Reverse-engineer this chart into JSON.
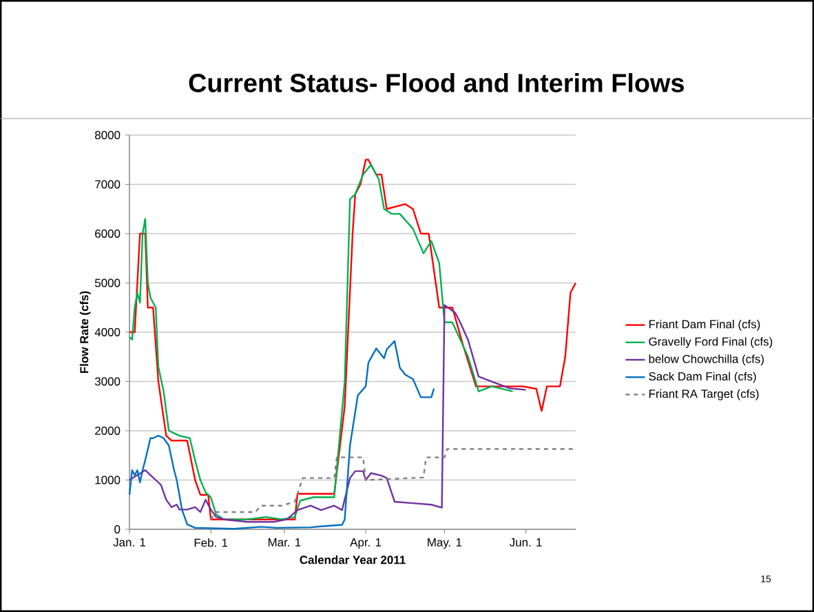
{
  "chart_data": {
    "type": "line",
    "title": "Current Status- Flood and Interim Flows",
    "xlabel": "Calendar Year 2011",
    "ylabel": "Flow Rate (cfs)",
    "xlim": [
      "2011-01-01",
      "2011-06-20"
    ],
    "xticks": [
      {
        "value": "2011-01-01",
        "label": "Jan. 1"
      },
      {
        "value": "2011-02-01",
        "label": "Feb. 1"
      },
      {
        "value": "2011-03-01",
        "label": "Mar. 1"
      },
      {
        "value": "2011-04-01",
        "label": "Apr. 1"
      },
      {
        "value": "2011-05-01",
        "label": "May. 1"
      },
      {
        "value": "2011-06-01",
        "label": "Jun. 1"
      }
    ],
    "ylim": [
      0,
      8000
    ],
    "yticks": [
      0,
      1000,
      2000,
      3000,
      4000,
      5000,
      6000,
      7000,
      8000
    ],
    "grid": "y",
    "legend": "right",
    "marker": "none",
    "annotations": [
      "15"
    ],
    "series": [
      {
        "name": "Friant Dam Final (cfs)",
        "color": "#ff0000",
        "x": [
          "2011-01-01",
          "2011-01-03",
          "2011-01-05",
          "2011-01-07",
          "2011-01-08",
          "2011-01-10",
          "2011-01-12",
          "2011-01-15",
          "2011-01-17",
          "2011-01-23",
          "2011-01-26",
          "2011-01-28",
          "2011-01-31",
          "2011-02-01",
          "2011-03-02",
          "2011-03-05",
          "2011-03-06",
          "2011-03-20",
          "2011-03-24",
          "2011-03-27",
          "2011-03-28",
          "2011-03-30",
          "2011-04-01",
          "2011-04-02",
          "2011-04-05",
          "2011-04-07",
          "2011-04-09",
          "2011-04-16",
          "2011-04-19",
          "2011-04-22",
          "2011-04-25",
          "2011-04-29",
          "2011-05-04",
          "2011-05-08",
          "2011-05-13",
          "2011-05-27",
          "2011-05-31",
          "2011-06-05",
          "2011-06-07",
          "2011-06-09",
          "2011-06-14",
          "2011-06-16",
          "2011-06-18",
          "2011-06-20"
        ],
        "values": [
          4000,
          4000,
          6000,
          6000,
          4500,
          4500,
          3000,
          1900,
          1800,
          1800,
          1000,
          700,
          700,
          200,
          200,
          200,
          720,
          720,
          2500,
          6000,
          6800,
          7000,
          7500,
          7500,
          7200,
          7200,
          6500,
          6600,
          6500,
          6000,
          6000,
          4500,
          4500,
          3750,
          2900,
          2900,
          2900,
          2850,
          2400,
          2900,
          2900,
          3500,
          4800,
          5000
        ]
      },
      {
        "name": "Gravelly Ford Final (cfs)",
        "color": "#00b050",
        "x": [
          "2011-01-01",
          "2011-01-02",
          "2011-01-03",
          "2011-01-04",
          "2011-01-05",
          "2011-01-06",
          "2011-01-07",
          "2011-01-08",
          "2011-01-09",
          "2011-01-11",
          "2011-01-12",
          "2011-01-14",
          "2011-01-16",
          "2011-01-18",
          "2011-01-20",
          "2011-01-24",
          "2011-01-26",
          "2011-01-28",
          "2011-01-30",
          "2011-02-01",
          "2011-02-03",
          "2011-02-06",
          "2011-02-15",
          "2011-02-22",
          "2011-02-28",
          "2011-03-05",
          "2011-03-07",
          "2011-03-12",
          "2011-03-20",
          "2011-03-24",
          "2011-03-26",
          "2011-03-28",
          "2011-03-31",
          "2011-04-03",
          "2011-04-06",
          "2011-04-08",
          "2011-04-11",
          "2011-04-14",
          "2011-04-19",
          "2011-04-23",
          "2011-04-26",
          "2011-04-29",
          "2011-05-01",
          "2011-05-04",
          "2011-05-10",
          "2011-05-14",
          "2011-05-19",
          "2011-05-27"
        ],
        "values": [
          3900,
          3850,
          4500,
          4800,
          4600,
          6000,
          6300,
          5000,
          4700,
          4500,
          3300,
          2800,
          2000,
          1950,
          1900,
          1850,
          1400,
          1000,
          750,
          650,
          300,
          200,
          200,
          250,
          200,
          250,
          580,
          650,
          650,
          3000,
          6700,
          6800,
          7200,
          7400,
          7100,
          6500,
          6400,
          6400,
          6100,
          5600,
          5850,
          5400,
          4200,
          4200,
          3500,
          2800,
          2900,
          2800
        ]
      },
      {
        "name": "below Chowchilla (cfs)",
        "color": "#7030a0",
        "x": [
          "2011-01-01",
          "2011-01-04",
          "2011-01-07",
          "2011-01-09",
          "2011-01-11",
          "2011-01-13",
          "2011-01-15",
          "2011-01-17",
          "2011-01-19",
          "2011-01-20",
          "2011-01-23",
          "2011-01-26",
          "2011-01-28",
          "2011-01-30",
          "2011-02-01",
          "2011-02-03",
          "2011-02-06",
          "2011-02-15",
          "2011-02-25",
          "2011-03-02",
          "2011-03-06",
          "2011-03-11",
          "2011-03-15",
          "2011-03-20",
          "2011-03-23",
          "2011-03-26",
          "2011-03-28",
          "2011-03-31",
          "2011-04-01",
          "2011-04-03",
          "2011-04-07",
          "2011-04-09",
          "2011-04-12",
          "2011-04-19",
          "2011-04-26",
          "2011-04-30",
          "2011-05-01",
          "2011-05-05",
          "2011-05-07",
          "2011-05-10",
          "2011-05-14",
          "2011-05-19",
          "2011-05-26",
          "2011-06-01"
        ],
        "values": [
          1000,
          1100,
          1200,
          1100,
          1000,
          900,
          600,
          450,
          500,
          400,
          400,
          450,
          350,
          600,
          400,
          250,
          200,
          150,
          150,
          200,
          390,
          480,
          390,
          480,
          390,
          1040,
          1180,
          1180,
          1000,
          1140,
          1090,
          1040,
          560,
          530,
          500,
          440,
          4550,
          4400,
          4200,
          3840,
          3100,
          3000,
          2860,
          2830
        ]
      },
      {
        "name": "Sack Dam Final (cfs)",
        "color": "#0070c0",
        "x": [
          "2011-01-01",
          "2011-01-02",
          "2011-01-03",
          "2011-01-04",
          "2011-01-05",
          "2011-01-06",
          "2011-01-07",
          "2011-01-09",
          "2011-01-10",
          "2011-01-12",
          "2011-01-14",
          "2011-01-16",
          "2011-01-18",
          "2011-01-19",
          "2011-01-21",
          "2011-01-23",
          "2011-01-26",
          "2011-02-10",
          "2011-02-20",
          "2011-02-26",
          "2011-03-11",
          "2011-03-15",
          "2011-03-23",
          "2011-03-24",
          "2011-03-26",
          "2011-03-29",
          "2011-04-01",
          "2011-04-02",
          "2011-04-05",
          "2011-04-08",
          "2011-04-09",
          "2011-04-12",
          "2011-04-14",
          "2011-04-16",
          "2011-04-19",
          "2011-04-22",
          "2011-04-26",
          "2011-04-27"
        ],
        "values": [
          700,
          1200,
          1100,
          1200,
          950,
          1200,
          1400,
          1850,
          1850,
          1900,
          1850,
          1700,
          1200,
          1000,
          400,
          100,
          30,
          10,
          50,
          30,
          40,
          60,
          90,
          200,
          1700,
          2720,
          2900,
          3380,
          3670,
          3470,
          3650,
          3820,
          3280,
          3140,
          3050,
          2680,
          2680,
          2860
        ]
      },
      {
        "name": "Friant RA Target (cfs)",
        "color": "#808080",
        "line_style": "dashed",
        "x": [
          "2011-02-01",
          "2011-02-03",
          "2011-02-18",
          "2011-02-20",
          "2011-02-28",
          "2011-03-05",
          "2011-03-08",
          "2011-03-20",
          "2011-03-21",
          "2011-03-31",
          "2011-04-01",
          "2011-04-23",
          "2011-04-24",
          "2011-05-01",
          "2011-05-02",
          "2011-06-20"
        ],
        "values": [
          200,
          350,
          350,
          480,
          480,
          560,
          1040,
          1040,
          1460,
          1460,
          1000,
          1050,
          1460,
          1460,
          1630,
          1630
        ]
      }
    ]
  }
}
